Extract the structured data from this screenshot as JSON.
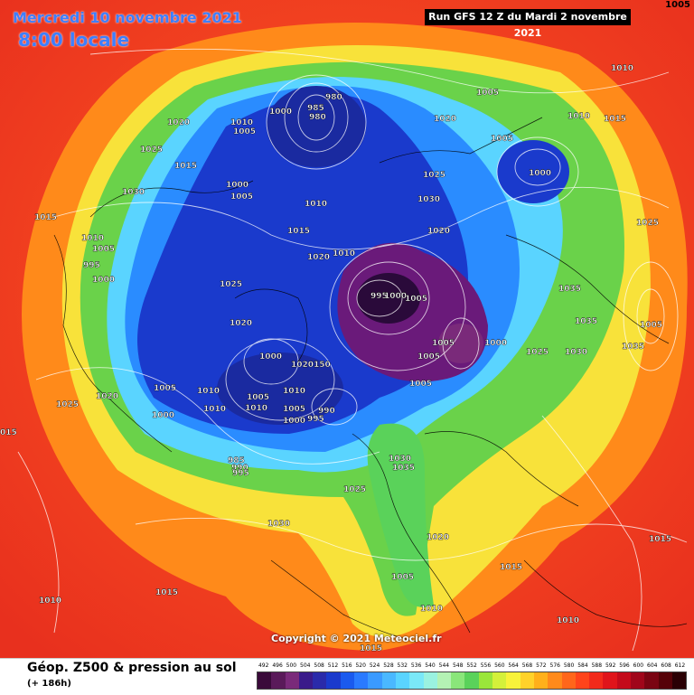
{
  "header": {
    "date": "Mercredi 10 novembre 2021",
    "time": "8:00 locale",
    "run": "Run GFS 12 Z du Mardi 2 novembre 2021",
    "corner_value": "1005"
  },
  "copyright": "Copyright © 2021 Meteociel.fr",
  "footer": {
    "title": "Géop. Z500 & pression au sol",
    "subtitle": "(+ 186h)"
  },
  "scale": {
    "labels": [
      "492",
      "496",
      "500",
      "504",
      "508",
      "512",
      "516",
      "520",
      "524",
      "528",
      "532",
      "536",
      "540",
      "544",
      "548",
      "552",
      "556",
      "560",
      "564",
      "568",
      "572",
      "576",
      "580",
      "584",
      "588",
      "592",
      "596",
      "600",
      "604",
      "608",
      "612"
    ],
    "colors": [
      "#3a0a3a",
      "#5a1a5a",
      "#7a2a7a",
      "#3a1a8a",
      "#2a2aaa",
      "#1a3acc",
      "#1a5aee",
      "#2a7aff",
      "#3a9aff",
      "#4ab8ff",
      "#5ad4ff",
      "#7ae8f8",
      "#9af2e0",
      "#b4f2b4",
      "#8ae67a",
      "#5ad25a",
      "#9ae63a",
      "#d4f03a",
      "#f8f23a",
      "#ffd22a",
      "#ffb01a",
      "#ff8a1a",
      "#ff661a",
      "#ff441a",
      "#f22a1a",
      "#e0141a",
      "#c40a1a",
      "#a0061a",
      "#7a0412",
      "#560208",
      "#2a0004"
    ]
  },
  "pressure_labels": [
    "1005",
    "1010",
    "1015",
    "1020",
    "1025",
    "1030",
    "1035",
    "1000",
    "995",
    "990",
    "985",
    "980"
  ],
  "map_colors": {
    "background": "#ee3d26",
    "orange": "#ff7a1a",
    "yellow": "#f8e23a",
    "green": "#6ad24a",
    "cyan": "#5ad4ff",
    "lightblue": "#2a8cff",
    "blue": "#1a3acc",
    "darkblue": "#1a2aa0",
    "purple": "#6a1a7a",
    "darkpurple": "#2a0a3a"
  }
}
